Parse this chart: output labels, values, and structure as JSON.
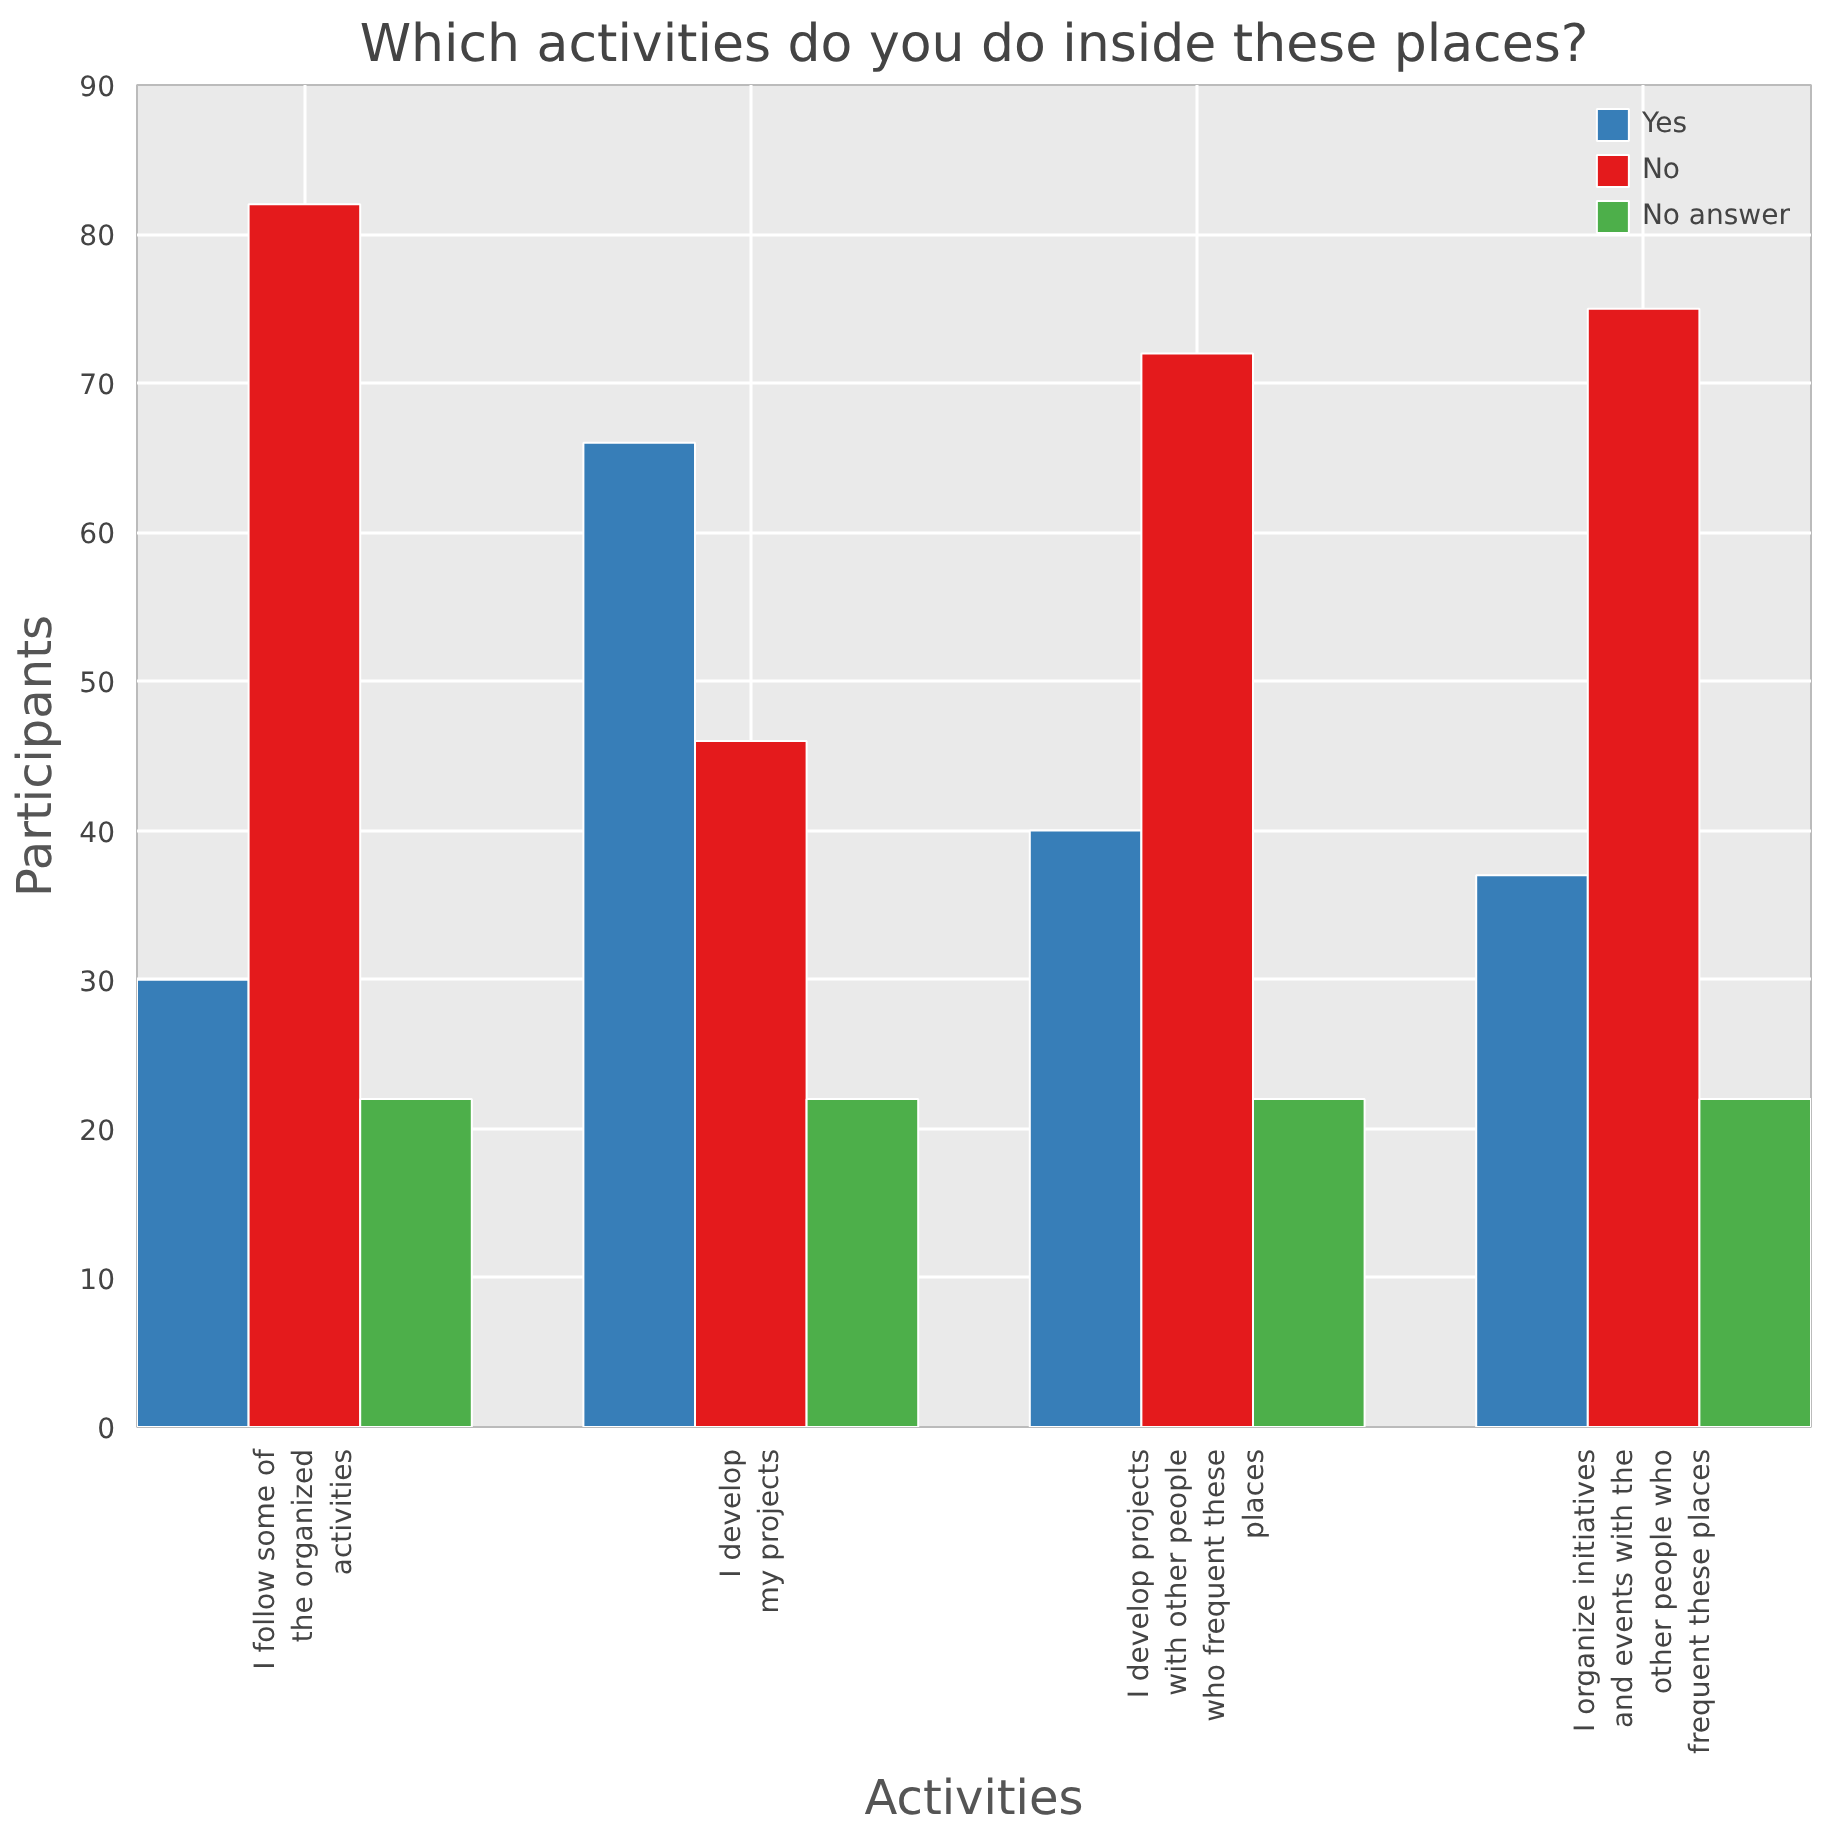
{
  "chart_data": {
    "type": "bar",
    "title": "Which activities do you do inside these places?",
    "xlabel": "Activities",
    "ylabel": "Participants",
    "categories": [
      "I follow some of\nthe organized\nactivities",
      "I develop\nmy projects",
      "I develop projects\nwith other people\nwho frequent these\nplaces",
      "I organize initiatives\nand events with the\nother people who\nfrequent these places"
    ],
    "series": [
      {
        "name": "Yes",
        "color": "#377eb8",
        "values": [
          30,
          66,
          40,
          37
        ]
      },
      {
        "name": "No",
        "color": "#e41a1c",
        "values": [
          82,
          46,
          72,
          75
        ]
      },
      {
        "name": "No answer",
        "color": "#4daf4a",
        "values": [
          22,
          22,
          22,
          22
        ]
      }
    ],
    "ylim": [
      0,
      90
    ],
    "yticks": [
      0,
      10,
      20,
      30,
      40,
      50,
      60,
      70,
      80,
      90
    ],
    "grid": true,
    "legend": "top right"
  }
}
